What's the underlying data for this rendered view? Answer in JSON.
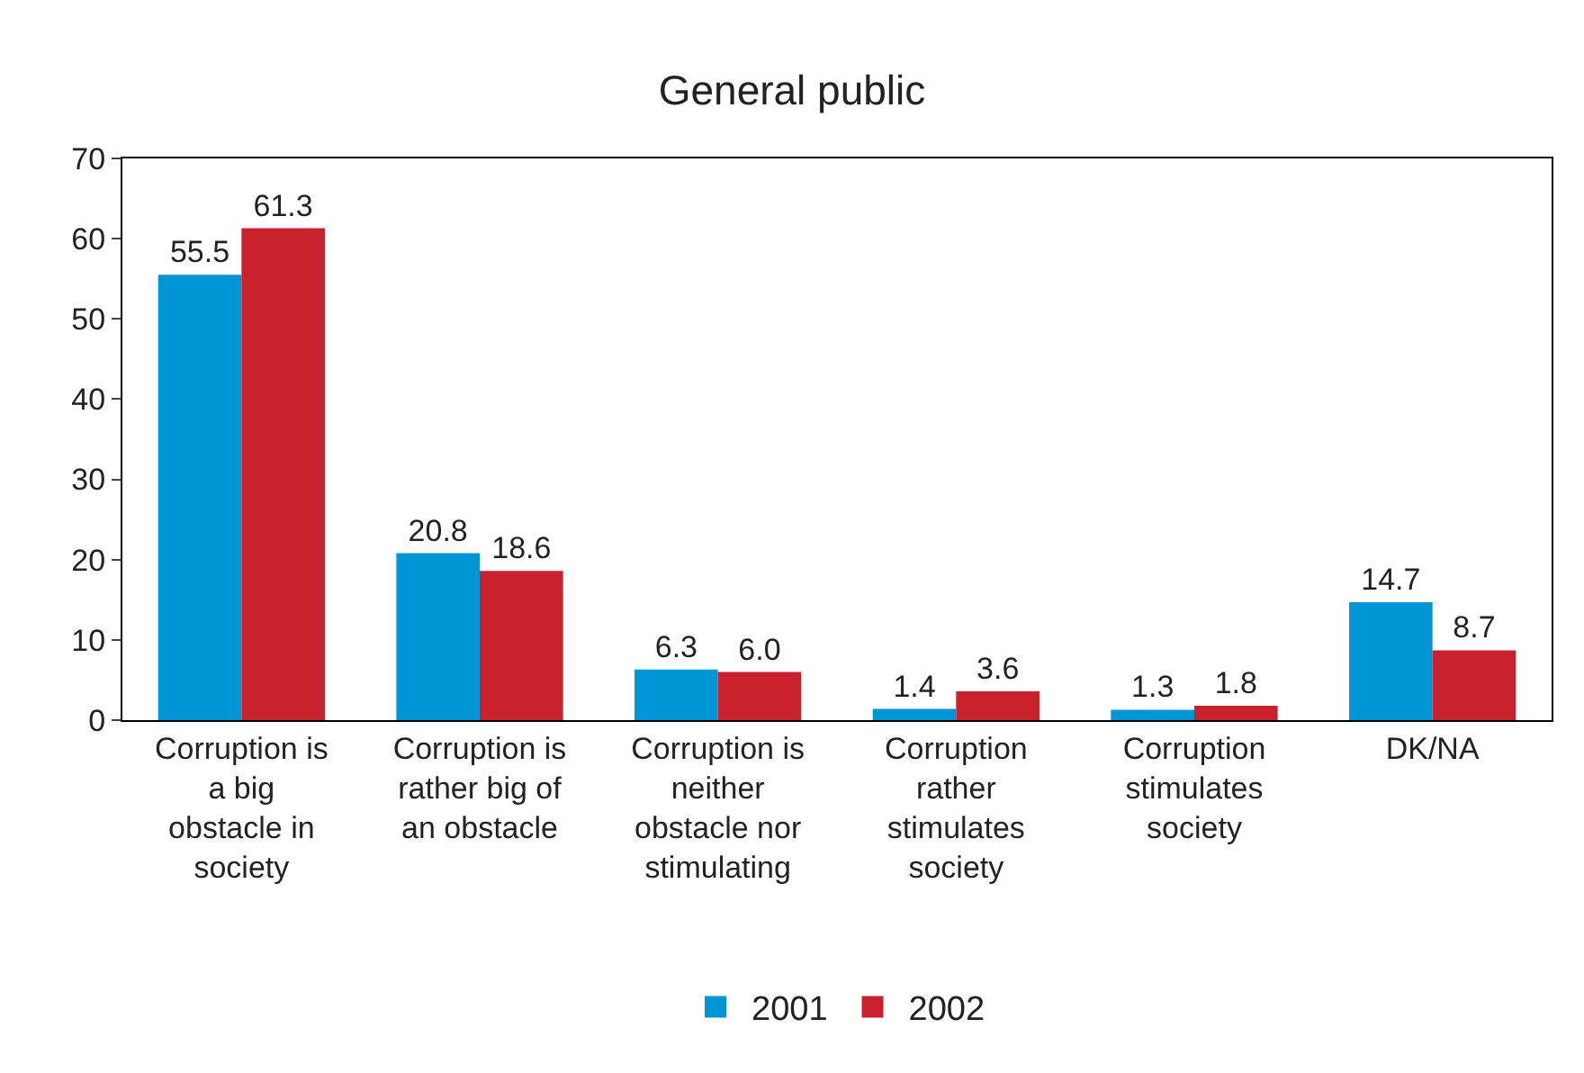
{
  "chart_data": {
    "type": "bar",
    "title": "General public",
    "categories": [
      "Corruption is a big obstacle in society",
      "Corruption is rather big of an obstacle",
      "Corruption is neither obstacle nor stimulating",
      "Corruption rather stimulates society",
      "Corruption stimulates society",
      "DK/NA"
    ],
    "series": [
      {
        "name": "2001",
        "color": "#0096d6",
        "values": [
          55.5,
          20.8,
          6.3,
          1.4,
          1.3,
          14.7
        ],
        "value_labels": [
          "55.5",
          "20.8",
          "6.3",
          "1.4",
          "1.3",
          "14.7"
        ]
      },
      {
        "name": "2002",
        "color": "#c8202d",
        "values": [
          61.3,
          18.6,
          6.0,
          3.6,
          1.8,
          8.7
        ],
        "value_labels": [
          "61.3",
          "18.6",
          "6.0",
          "3.6",
          "1.8",
          "8.7"
        ]
      }
    ],
    "ylim": [
      0,
      70
    ],
    "yticks": [
      0,
      10,
      20,
      30,
      40,
      50,
      60,
      70
    ],
    "legend": "bottom"
  }
}
